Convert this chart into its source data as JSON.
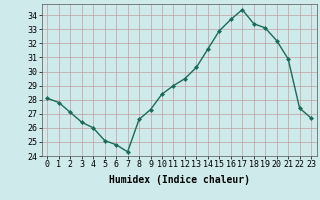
{
  "x": [
    0,
    1,
    2,
    3,
    4,
    5,
    6,
    7,
    8,
    9,
    10,
    11,
    12,
    13,
    14,
    15,
    16,
    17,
    18,
    19,
    20,
    21,
    22,
    23
  ],
  "y": [
    28.1,
    27.8,
    27.1,
    26.4,
    26.0,
    25.1,
    24.8,
    24.3,
    26.6,
    27.3,
    28.4,
    29.0,
    29.5,
    30.3,
    31.6,
    32.9,
    33.7,
    34.4,
    33.4,
    33.1,
    32.2,
    30.9,
    27.4,
    26.7
  ],
  "title": "",
  "xlabel": "Humidex (Indice chaleur)",
  "ylim": [
    24,
    34.8
  ],
  "yticks": [
    24,
    25,
    26,
    27,
    28,
    29,
    30,
    31,
    32,
    33,
    34
  ],
  "xticks": [
    0,
    1,
    2,
    3,
    4,
    5,
    6,
    7,
    8,
    9,
    10,
    11,
    12,
    13,
    14,
    15,
    16,
    17,
    18,
    19,
    20,
    21,
    22,
    23
  ],
  "line_color": "#1a6b5a",
  "marker": "D",
  "marker_size": 2.0,
  "bg_color": "#ceeaea",
  "grid_color": "#c0a0a0",
  "line_width": 1.0,
  "xlabel_fontsize": 7.0,
  "tick_fontsize": 6.0
}
